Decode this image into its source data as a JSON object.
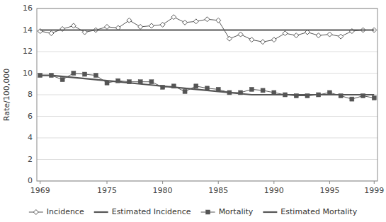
{
  "chart_data": {
    "type": "line",
    "ylabel": "Rate/100,000",
    "x": [
      1969,
      1970,
      1971,
      1972,
      1973,
      1974,
      1975,
      1976,
      1977,
      1978,
      1979,
      1980,
      1981,
      1982,
      1983,
      1984,
      1985,
      1986,
      1987,
      1988,
      1989,
      1990,
      1991,
      1992,
      1993,
      1994,
      1995,
      1996,
      1997,
      1998,
      1999
    ],
    "series": [
      {
        "name": "Incidence",
        "color": "#555555",
        "marker": "diamond",
        "line_style": "solid",
        "values": [
          13.9,
          13.7,
          14.1,
          14.4,
          13.8,
          14.0,
          14.3,
          14.2,
          14.9,
          14.3,
          14.4,
          14.5,
          15.2,
          14.7,
          14.8,
          15.0,
          14.9,
          13.2,
          13.6,
          13.1,
          12.9,
          13.1,
          13.7,
          13.5,
          13.8,
          13.5,
          13.6,
          13.4,
          13.9,
          14.0,
          14.0
        ]
      },
      {
        "name": "Estimated Incidence",
        "color": "#555555",
        "marker": "none",
        "line_style": "solid",
        "values": [
          14.0,
          14.0,
          14.0,
          14.0,
          14.0,
          14.0,
          14.0,
          14.0,
          14.0,
          14.0,
          14.0,
          14.0,
          14.0,
          14.0,
          14.0,
          14.0,
          14.0,
          14.0,
          14.0,
          14.0,
          14.0,
          14.0,
          14.0,
          14.0,
          14.0,
          14.0,
          14.0,
          14.0,
          14.0,
          14.0,
          14.0
        ]
      },
      {
        "name": "Mortality",
        "color": "#555555",
        "marker": "square",
        "line_style": "solid",
        "values": [
          9.8,
          9.8,
          9.4,
          10.0,
          9.9,
          9.8,
          9.1,
          9.3,
          9.2,
          9.2,
          9.2,
          8.7,
          8.8,
          8.3,
          8.8,
          8.6,
          8.5,
          8.2,
          8.2,
          8.5,
          8.4,
          8.2,
          8.0,
          7.9,
          7.9,
          8.0,
          8.2,
          7.9,
          7.6,
          7.9,
          7.7
        ]
      },
      {
        "name": "Estimated Mortality",
        "color": "#555555",
        "marker": "none",
        "line_style": "solid",
        "values": [
          9.8,
          9.8,
          9.7,
          9.6,
          9.5,
          9.4,
          9.3,
          9.2,
          9.1,
          9.0,
          8.9,
          8.8,
          8.7,
          8.6,
          8.5,
          8.4,
          8.3,
          8.2,
          8.1,
          8.0,
          8.0,
          8.0,
          8.0,
          8.0,
          8.0,
          8.0,
          8.0,
          8.0,
          8.0,
          8.0,
          8.0
        ]
      }
    ],
    "xlim": [
      1968.7,
      1999.3
    ],
    "xticks": [
      1969,
      1975,
      1980,
      1985,
      1990,
      1995,
      1999
    ],
    "ylim": [
      0,
      16
    ],
    "yticks": [
      0,
      2,
      4,
      6,
      8,
      10,
      12,
      14,
      16
    ],
    "grid": true,
    "legend": "bottom"
  }
}
